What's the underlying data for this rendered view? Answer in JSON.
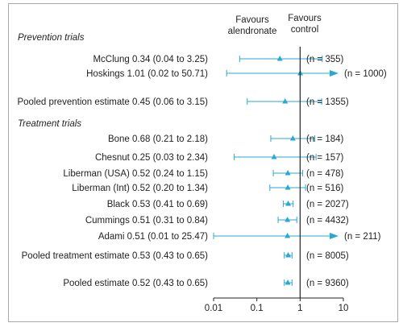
{
  "chart_data": {
    "type": "forest",
    "x_scale": "log",
    "xlim": [
      0.01,
      10
    ],
    "x_ticks": [
      "0.01",
      "0.1",
      "1",
      "10"
    ],
    "reference_line": 1,
    "column_headers": {
      "left": [
        "Favours",
        "alendronate"
      ],
      "right": [
        "Favours",
        "control"
      ]
    },
    "sections": [
      {
        "title": "Prevention trials",
        "rows": [
          {
            "label": "McClung 0.34 (0.04 to 3.25)",
            "estimate": 0.34,
            "low": 0.04,
            "high": 3.25,
            "n": "(n = 355)",
            "arrow_right": false
          },
          {
            "label": "Hoskings 1.01 (0.02 to 50.71)",
            "estimate": 1.01,
            "low": 0.02,
            "high": 50.71,
            "n": "(n = 1000)",
            "arrow_right": true
          },
          {
            "label": "Pooled prevention estimate 0.45 (0.06 to 3.15)",
            "estimate": 0.45,
            "low": 0.06,
            "high": 3.15,
            "n": "(n = 1355)",
            "arrow_right": false
          }
        ]
      },
      {
        "title": "Treatment trials",
        "rows": [
          {
            "label": "Bone 0.68 (0.21 to 2.18)",
            "estimate": 0.68,
            "low": 0.21,
            "high": 2.18,
            "n": "(n = 184)",
            "arrow_right": false
          },
          {
            "label": "Chesnut 0.25 (0.03 to 2.34)",
            "estimate": 0.25,
            "low": 0.03,
            "high": 2.34,
            "n": "(n = 157)",
            "arrow_right": false
          },
          {
            "label": "Liberman (USA) 0.52 (0.24 to 1.15)",
            "estimate": 0.52,
            "low": 0.24,
            "high": 1.15,
            "n": "(n = 478)",
            "arrow_right": false
          },
          {
            "label": "Liberman (Int) 0.52 (0.20 to 1.34)",
            "estimate": 0.52,
            "low": 0.2,
            "high": 1.34,
            "n": "(n = 516)",
            "arrow_right": false
          },
          {
            "label": "Black 0.53 (0.41 to 0.69)",
            "estimate": 0.53,
            "low": 0.41,
            "high": 0.69,
            "n": "(n = 2027)",
            "arrow_right": false
          },
          {
            "label": "Cummings 0.51 (0.31 to 0.84)",
            "estimate": 0.51,
            "low": 0.31,
            "high": 0.84,
            "n": "(n = 4432)",
            "arrow_right": false
          },
          {
            "label": "Adami 0.51 (0.01 to 25.47)",
            "estimate": 0.51,
            "low": 0.01,
            "high": 25.47,
            "n": "(n = 211)",
            "arrow_right": true
          },
          {
            "label": "Pooled treatment estimate 0.53 (0.43 to 0.65)",
            "estimate": 0.53,
            "low": 0.43,
            "high": 0.65,
            "n": "(n = 8005)",
            "arrow_right": false
          },
          {
            "label": "Pooled estimate 0.52 (0.43 to 0.65)",
            "estimate": 0.52,
            "low": 0.43,
            "high": 0.65,
            "n": "(n = 9360)",
            "arrow_right": false
          }
        ]
      }
    ],
    "colors": {
      "marker": "#29a9d0",
      "axis": "#222222",
      "frame": "#a9a9a9"
    }
  }
}
